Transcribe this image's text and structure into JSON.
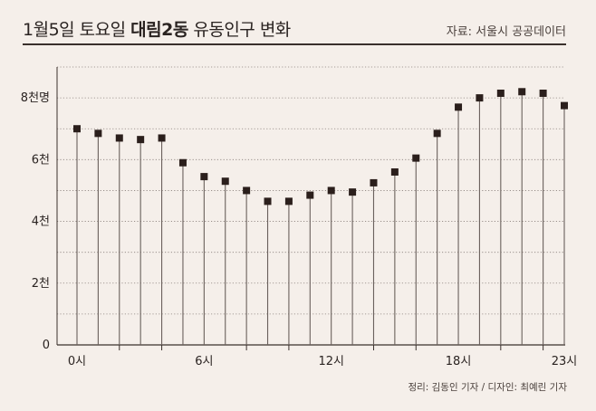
{
  "header": {
    "title_prefix": "1월5일 토요일 ",
    "title_bold": "대림2동",
    "title_suffix": " 유동인구 변화",
    "source": "자료: 서울시 공공데이터"
  },
  "footer": {
    "credit": "정리: 김동인 기자 / 디자인: 최예린 기자"
  },
  "colors": {
    "background": "#f5efea",
    "marker": "#2b1f1c",
    "stem": "#6a605c",
    "grid": "#8a807c"
  },
  "chart_data": {
    "type": "scatter",
    "title": "1월5일 토요일 대림2동 유동인구 변화",
    "x": [
      0,
      1,
      2,
      3,
      4,
      5,
      6,
      7,
      8,
      9,
      10,
      11,
      12,
      13,
      14,
      15,
      16,
      17,
      18,
      19,
      20,
      21,
      22,
      23
    ],
    "values": [
      7000,
      6850,
      6700,
      6650,
      6700,
      5900,
      5450,
      5300,
      5000,
      4650,
      4650,
      4850,
      5000,
      4950,
      5250,
      5600,
      6050,
      6850,
      7700,
      8000,
      8150,
      8200,
      8150,
      7750
    ],
    "ylim": [
      0,
      9000
    ],
    "y_ticks": [
      {
        "value": 0,
        "label": "0"
      },
      {
        "value": 2000,
        "label": "2천"
      },
      {
        "value": 4000,
        "label": "4천"
      },
      {
        "value": 6000,
        "label": "6천"
      },
      {
        "value": 8000,
        "label": "8천명"
      }
    ],
    "y_minor_ticks": [
      1000,
      3000,
      5000,
      7000,
      9000
    ],
    "x_ticks": [
      {
        "value": 0,
        "label": "0시"
      },
      {
        "value": 6,
        "label": "6시"
      },
      {
        "value": 12,
        "label": "12시"
      },
      {
        "value": 18,
        "label": "18시"
      },
      {
        "value": 23,
        "label": "23시"
      }
    ],
    "x_minor_ticks": [
      2,
      4,
      8,
      10,
      14,
      16,
      20,
      22
    ],
    "grid": true,
    "marker": "square",
    "stems": true
  }
}
